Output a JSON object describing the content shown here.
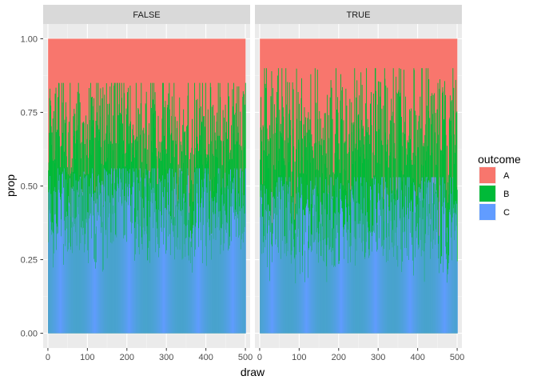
{
  "chart_data": {
    "type": "area",
    "chart_kind": "faceted stacked proportion chart",
    "xlabel": "draw",
    "ylabel": "prop",
    "xlim": [
      0,
      500
    ],
    "ylim": [
      0,
      1
    ],
    "x_ticks": [
      0,
      100,
      200,
      300,
      400,
      500
    ],
    "y_ticks": [
      0.0,
      0.25,
      0.5,
      0.75,
      1.0
    ],
    "x_tick_labels": [
      "0",
      "100",
      "200",
      "300",
      "400",
      "500"
    ],
    "y_tick_labels": [
      "0.00",
      "0.25",
      "0.50",
      "0.75",
      "1.00"
    ],
    "grid": true,
    "legend": {
      "title": "outcome",
      "placement": "right",
      "entries": [
        {
          "label": "A",
          "color": "#F8766D"
        },
        {
          "label": "B",
          "color": "#00BA38"
        },
        {
          "label": "C",
          "color": "#619CFF"
        }
      ]
    },
    "stack_order_top_to_bottom": [
      "A",
      "B",
      "C"
    ],
    "facets": [
      {
        "label": "FALSE",
        "x": [
          1,
          500
        ],
        "series": [
          {
            "name": "C",
            "typical_range": [
              0.18,
              0.56
            ],
            "mean": 0.42
          },
          {
            "name": "B",
            "typical_range": [
              0.08,
              0.45
            ],
            "mean": 0.23
          },
          {
            "name": "A",
            "typical_range": [
              0.18,
              0.62
            ],
            "mean": 0.35
          }
        ],
        "top_boundary_B_range": [
          0.28,
          0.85
        ],
        "top_boundary_C_range": [
          0.18,
          0.56
        ]
      },
      {
        "label": "TRUE",
        "x": [
          1,
          500
        ],
        "series": [
          {
            "name": "C",
            "typical_range": [
              0.14,
              0.53
            ],
            "mean": 0.38
          },
          {
            "name": "B",
            "typical_range": [
              0.08,
              0.48
            ],
            "mean": 0.25
          },
          {
            "name": "A",
            "typical_range": [
              0.1,
              0.65
            ],
            "mean": 0.37
          }
        ],
        "top_boundary_B_range": [
          0.3,
          0.9
        ],
        "top_boundary_C_range": [
          0.14,
          0.53
        ]
      }
    ]
  }
}
